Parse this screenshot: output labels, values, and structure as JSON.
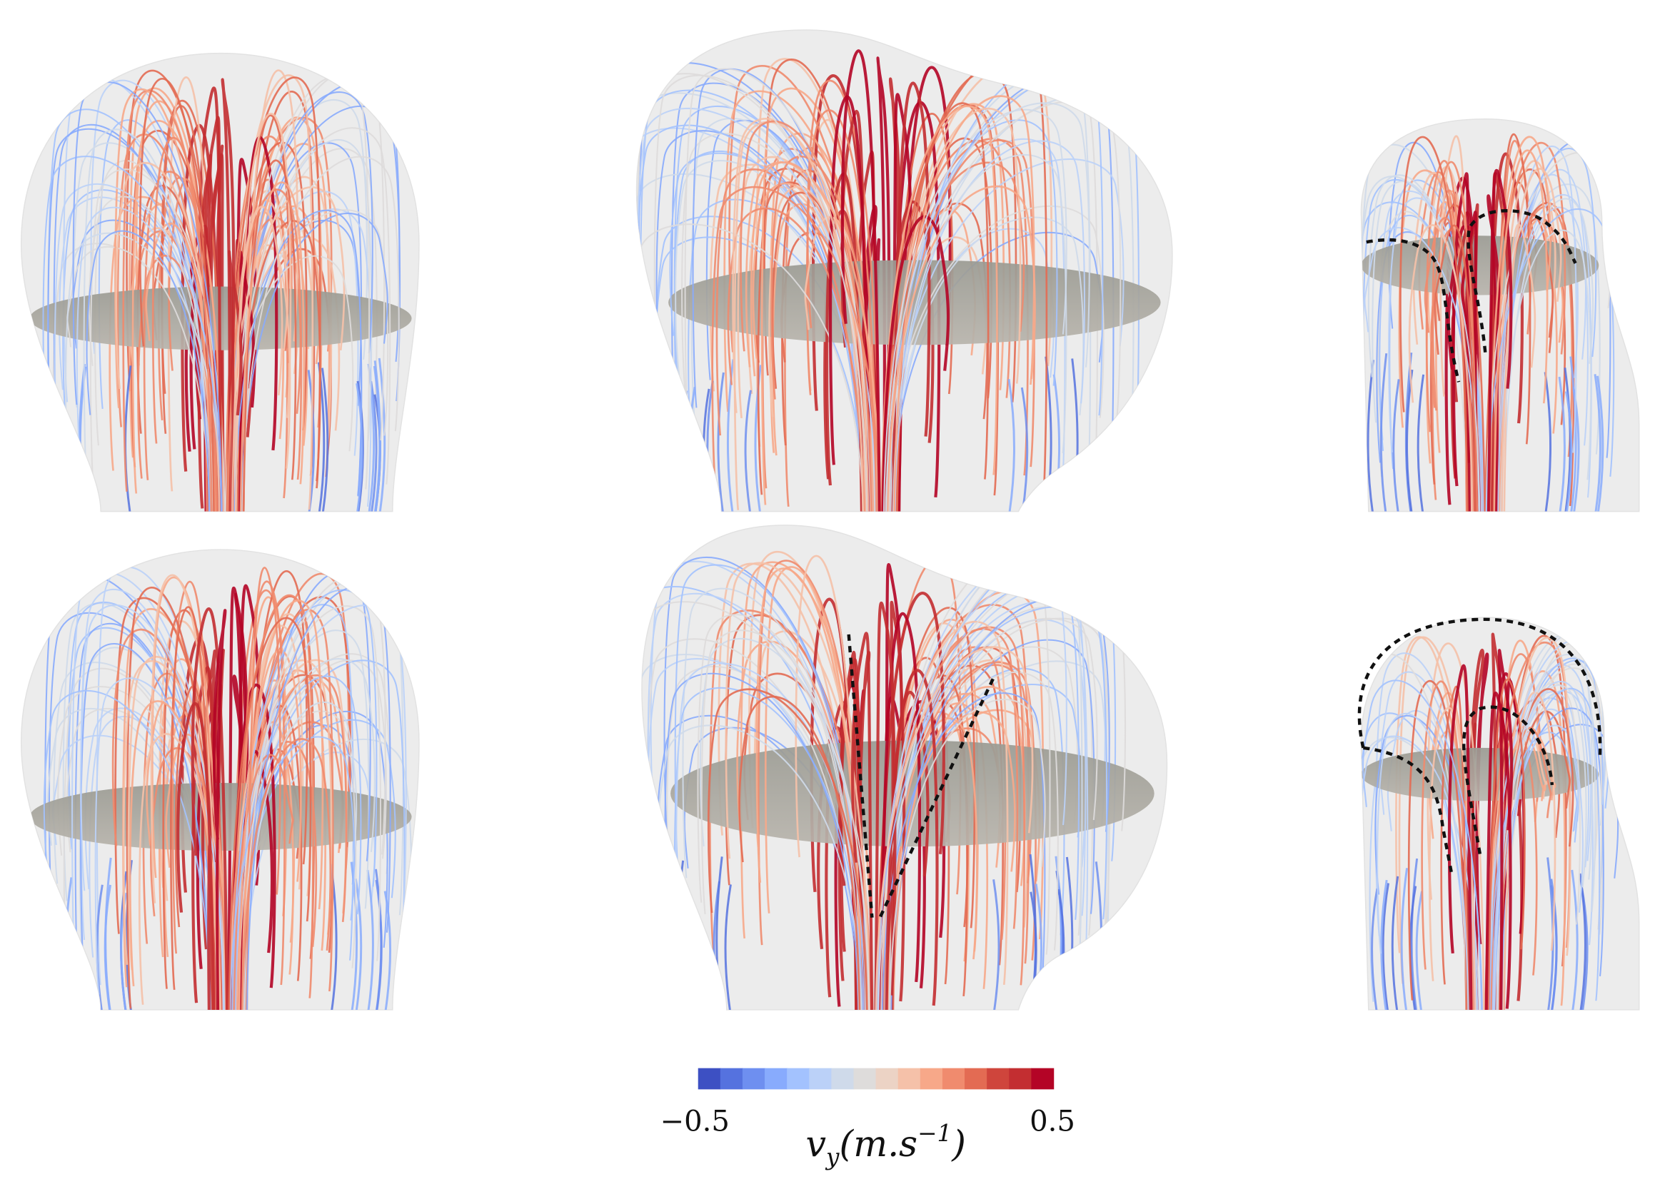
{
  "colorbar": {
    "range": [
      -0.5,
      0.5
    ],
    "ticks": [
      {
        "value": -0.5,
        "label": "−0.5"
      },
      {
        "value": 0.5,
        "label": "0.5"
      }
    ],
    "label": {
      "symbol": "v",
      "subscript": "y",
      "unit": "(m.s",
      "superscript": "−1",
      "close": ")"
    },
    "colors": [
      "#3d50c3",
      "#5572df",
      "#6e8ff0",
      "#88abfd",
      "#a3c2fe",
      "#bbd1f8",
      "#cfdaea",
      "#dedcdb",
      "#ecd3c5",
      "#f5c1a9",
      "#f7a889",
      "#f08b6e",
      "#e36b53",
      "#cf453c",
      "#c32e31",
      "#b40426"
    ]
  }
}
